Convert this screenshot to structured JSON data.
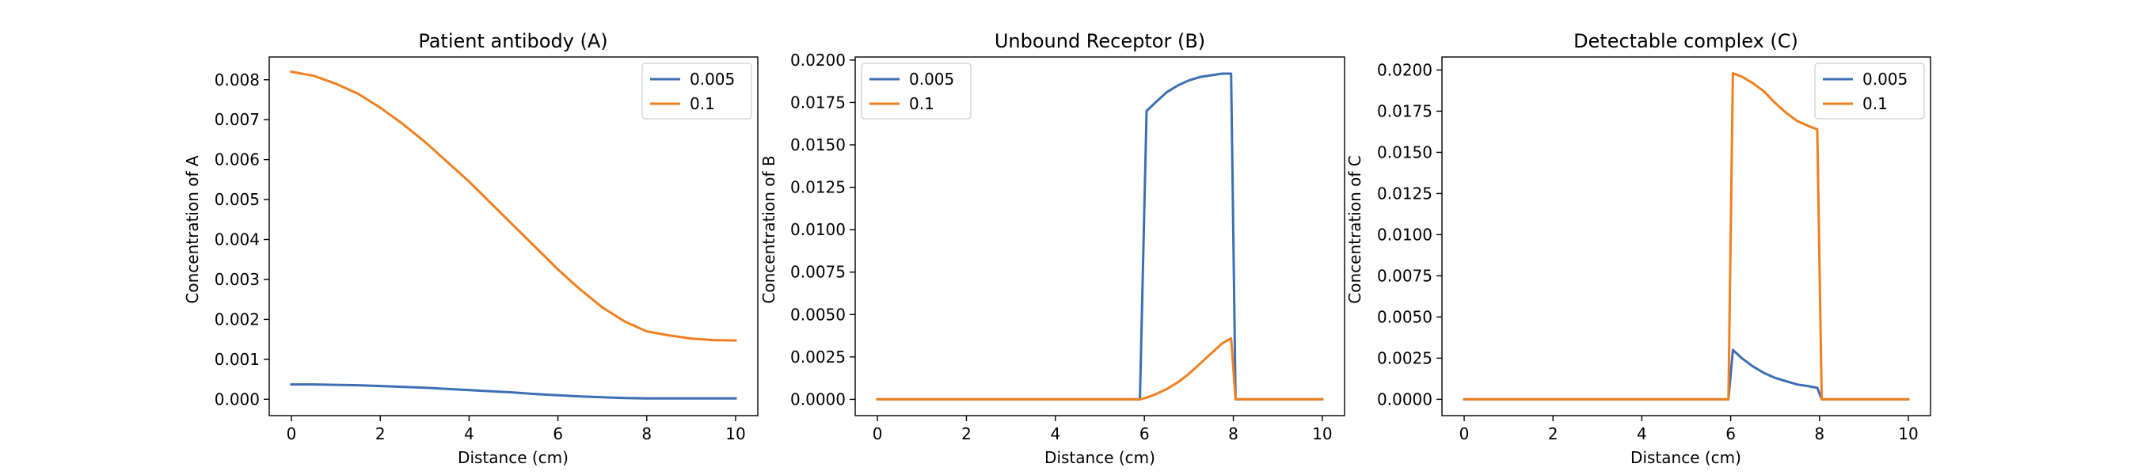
{
  "colors": {
    "series_0": "#3c6eb4",
    "series_1": "#f07f1e"
  },
  "chart_data": [
    {
      "type": "line",
      "title": "Patient antibody (A)",
      "xlabel": "Distance (cm)",
      "ylabel": "Concentration of A",
      "xlim": [
        -0.5,
        10.5
      ],
      "ylim": [
        -0.00041,
        0.00857
      ],
      "xticks": [
        "0",
        "2",
        "4",
        "6",
        "8",
        "10"
      ],
      "yticks": [
        "0.000",
        "0.001",
        "0.002",
        "0.003",
        "0.004",
        "0.005",
        "0.006",
        "0.007",
        "0.008"
      ],
      "legend_position": "upper right",
      "x": [
        0,
        0.5,
        1,
        1.5,
        2,
        2.5,
        3,
        3.5,
        4,
        4.5,
        5,
        5.5,
        6,
        6.5,
        7,
        7.5,
        8,
        8.5,
        9,
        9.5,
        10
      ],
      "series": [
        {
          "name": "0.005",
          "values": [
            0.00037,
            0.00037,
            0.00036,
            0.00035,
            0.00033,
            0.00031,
            0.00029,
            0.00026,
            0.00023,
            0.0002,
            0.00017,
            0.00013,
            0.0001,
            7e-05,
            5e-05,
            3e-05,
            2e-05,
            2e-05,
            2e-05,
            2e-05,
            2e-05
          ]
        },
        {
          "name": "0.1",
          "values": [
            0.0082,
            0.0081,
            0.0079,
            0.00765,
            0.0073,
            0.0069,
            0.00645,
            0.00595,
            0.00545,
            0.0049,
            0.00435,
            0.0038,
            0.00325,
            0.00275,
            0.0023,
            0.00195,
            0.0017,
            0.0016,
            0.00152,
            0.00148,
            0.00147
          ]
        }
      ]
    },
    {
      "type": "line",
      "title": "Unbound Receptor (B)",
      "xlabel": "Distance (cm)",
      "ylabel": "Concentration of B",
      "xlim": [
        -0.5,
        10.5
      ],
      "ylim": [
        -0.00096,
        0.02018
      ],
      "xticks": [
        "0",
        "2",
        "4",
        "6",
        "8",
        "10"
      ],
      "yticks": [
        "0.0000",
        "0.0025",
        "0.0050",
        "0.0075",
        "0.0100",
        "0.0125",
        "0.0150",
        "0.0175",
        "0.0200"
      ],
      "legend_position": "upper left",
      "x": [
        0,
        1,
        2,
        3,
        4,
        5,
        5.9,
        6.05,
        6.25,
        6.5,
        6.75,
        7,
        7.25,
        7.5,
        7.75,
        7.95,
        8.05,
        9,
        10
      ],
      "series": [
        {
          "name": "0.005",
          "values": [
            0,
            0,
            0,
            0,
            0,
            0,
            0,
            0.017,
            0.0175,
            0.0181,
            0.0185,
            0.0188,
            0.019,
            0.0191,
            0.0192,
            0.0192,
            0,
            0,
            0
          ]
        },
        {
          "name": "0.1",
          "values": [
            0,
            0,
            0,
            0,
            0,
            0,
            0,
            0.0001,
            0.0003,
            0.0006,
            0.001,
            0.0015,
            0.0021,
            0.0027,
            0.0033,
            0.0036,
            0,
            0,
            0
          ]
        }
      ]
    },
    {
      "type": "line",
      "title": "Detectable complex (C)",
      "xlabel": "Distance (cm)",
      "ylabel": "Concentration of C",
      "xlim": [
        -0.5,
        10.5
      ],
      "ylim": [
        -0.00099,
        0.02079
      ],
      "xticks": [
        "0",
        "2",
        "4",
        "6",
        "8",
        "10"
      ],
      "yticks": [
        "0.0000",
        "0.0025",
        "0.0050",
        "0.0075",
        "0.0100",
        "0.0125",
        "0.0150",
        "0.0175",
        "0.0200"
      ],
      "legend_position": "upper right",
      "x": [
        0,
        1,
        2,
        3,
        4,
        5,
        5.95,
        6.05,
        6.25,
        6.5,
        6.75,
        7,
        7.25,
        7.5,
        7.75,
        7.95,
        8.05,
        9,
        10
      ],
      "series": [
        {
          "name": "0.005",
          "values": [
            0,
            0,
            0,
            0,
            0,
            0,
            0,
            0.003,
            0.0025,
            0.002,
            0.0016,
            0.0013,
            0.0011,
            0.0009,
            0.0008,
            0.0007,
            0,
            0,
            0
          ]
        },
        {
          "name": "0.1",
          "values": [
            0,
            0,
            0,
            0,
            0,
            0,
            0,
            0.0198,
            0.0196,
            0.0192,
            0.0187,
            0.018,
            0.0174,
            0.0169,
            0.0166,
            0.0164,
            0,
            0,
            0
          ]
        }
      ]
    }
  ]
}
